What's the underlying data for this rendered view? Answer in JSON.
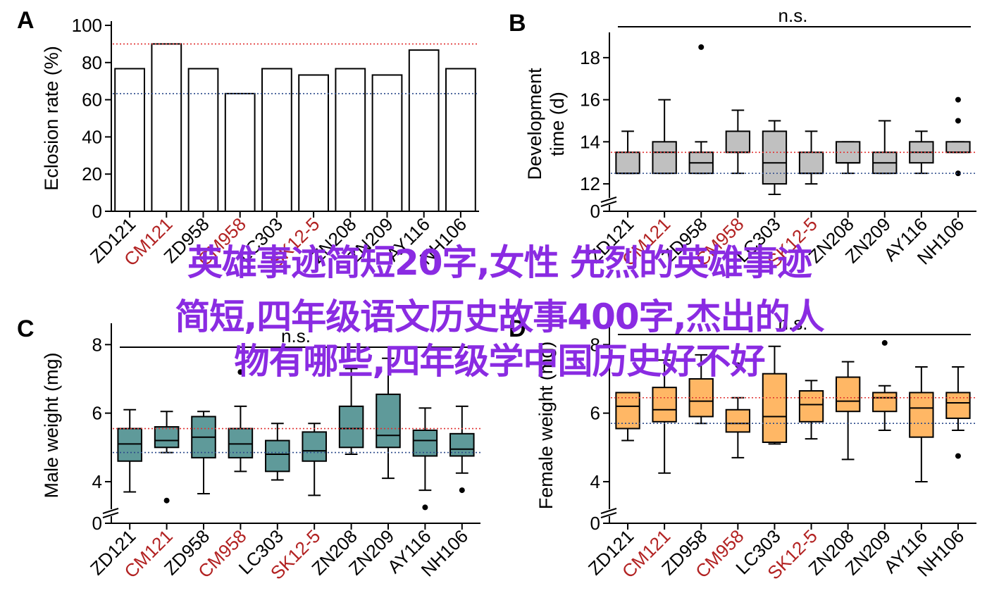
{
  "colors": {
    "ref_high": "#e03030",
    "ref_low": "#2c4a8a",
    "highlight_label": "#b22222",
    "male_box": "#5f9a9a",
    "female_box": "#ffb765",
    "devtime_box": "#c0c0c0",
    "banner": "#8a2be2"
  },
  "overlay": {
    "line1": "英雄事迹简短20字,女性 先烈的英雄事迹",
    "line2": "简短,四年级语文历史故事400字,杰出的人",
    "line3": "物有哪些,四年级学中国历史好不好"
  },
  "chart_data": [
    {
      "panel": "A",
      "type": "bar",
      "ylabel": "Eclosion rate (%)",
      "ylim": [
        0,
        100
      ],
      "yticks": [
        0,
        20,
        40,
        60,
        80,
        100
      ],
      "categories": [
        "ZD121",
        "CM121",
        "ZD958",
        "CM958",
        "LC303",
        "SK12-5",
        "ZN208",
        "ZN209",
        "AY116",
        "NH106"
      ],
      "highlighted_categories": [
        "CM121",
        "CM958",
        "SK12-5"
      ],
      "values": [
        76.7,
        90,
        76.7,
        63.3,
        76.7,
        73.3,
        76.7,
        73.3,
        86.7,
        76.7
      ],
      "reference_lines": [
        90,
        63.3
      ]
    },
    {
      "panel": "B",
      "type": "box",
      "ylabel": "Development time (d)",
      "ylim": [
        11.5,
        19
      ],
      "yticks": [
        12,
        14,
        16,
        18
      ],
      "axis_break": true,
      "significance": "n.s.",
      "categories": [
        "ZD121",
        "CM121",
        "ZD958",
        "CM958",
        "LC303",
        "SK12-5",
        "ZN208",
        "ZN209",
        "AY116",
        "NH106"
      ],
      "highlighted_categories": [
        "CM121",
        "CM958",
        "SK12-5"
      ],
      "boxes": [
        {
          "whislo": 12.5,
          "q1": 12.5,
          "med": 12.5,
          "q3": 13.5,
          "whishi": 14.5,
          "fliers": []
        },
        {
          "whislo": 12.5,
          "q1": 12.5,
          "med": 13.5,
          "q3": 14,
          "whishi": 16,
          "fliers": []
        },
        {
          "whislo": 12.5,
          "q1": 12.5,
          "med": 13,
          "q3": 13.5,
          "whishi": 14,
          "fliers": [
            18.5
          ]
        },
        {
          "whislo": 12.5,
          "q1": 13.5,
          "med": 13.5,
          "q3": 14.5,
          "whishi": 15.5,
          "fliers": []
        },
        {
          "whislo": 11.5,
          "q1": 12,
          "med": 13,
          "q3": 14.5,
          "whishi": 15,
          "fliers": []
        },
        {
          "whislo": 12,
          "q1": 12.5,
          "med": 12.5,
          "q3": 13.5,
          "whishi": 14.5,
          "fliers": []
        },
        {
          "whislo": 12.5,
          "q1": 13,
          "med": 13,
          "q3": 14,
          "whishi": 14,
          "fliers": []
        },
        {
          "whislo": 12.5,
          "q1": 12.5,
          "med": 13,
          "q3": 13.5,
          "whishi": 15,
          "fliers": []
        },
        {
          "whislo": 12.5,
          "q1": 13,
          "med": 13.5,
          "q3": 14,
          "whishi": 14.5,
          "fliers": []
        },
        {
          "whislo": 13.5,
          "q1": 13.5,
          "med": 13.5,
          "q3": 14,
          "whishi": 14,
          "fliers": [
            16,
            15,
            12.5
          ]
        }
      ],
      "reference_lines": [
        13.5,
        12.5
      ]
    },
    {
      "panel": "C",
      "type": "box",
      "ylabel": "Male weight (mg)",
      "ylim": [
        3.3,
        8.5
      ],
      "yticks": [
        4,
        6,
        8
      ],
      "axis_break": true,
      "significance": "n.s.",
      "categories": [
        "ZD121",
        "CM121",
        "ZD958",
        "CM958",
        "LC303",
        "SK12-5",
        "ZN208",
        "ZN209",
        "AY116",
        "NH106"
      ],
      "highlighted_categories": [
        "CM121",
        "CM958",
        "SK12-5"
      ],
      "boxes": [
        {
          "whislo": 3.7,
          "q1": 4.6,
          "med": 5.1,
          "q3": 5.55,
          "whishi": 6.1,
          "fliers": []
        },
        {
          "whislo": 4.85,
          "q1": 5.0,
          "med": 5.2,
          "q3": 5.6,
          "whishi": 6.05,
          "fliers": [
            3.45
          ]
        },
        {
          "whislo": 3.65,
          "q1": 4.7,
          "med": 5.3,
          "q3": 5.9,
          "whishi": 6.05,
          "fliers": []
        },
        {
          "whislo": 4.3,
          "q1": 4.7,
          "med": 5.1,
          "q3": 5.55,
          "whishi": 6.2,
          "fliers": [
            7.2
          ]
        },
        {
          "whislo": 4.05,
          "q1": 4.3,
          "med": 4.8,
          "q3": 5.2,
          "whishi": 5.7,
          "fliers": []
        },
        {
          "whislo": 3.6,
          "q1": 4.6,
          "med": 4.9,
          "q3": 5.45,
          "whishi": 5.7,
          "fliers": []
        },
        {
          "whislo": 4.8,
          "q1": 5.0,
          "med": 5.55,
          "q3": 6.2,
          "whishi": 7.3,
          "fliers": []
        },
        {
          "whislo": 4.1,
          "q1": 5.0,
          "med": 5.35,
          "q3": 6.55,
          "whishi": 7.6,
          "fliers": []
        },
        {
          "whislo": 3.75,
          "q1": 4.75,
          "med": 5.2,
          "q3": 5.5,
          "whishi": 6.15,
          "fliers": [
            3.25
          ]
        },
        {
          "whislo": 4.25,
          "q1": 4.75,
          "med": 4.95,
          "q3": 5.4,
          "whishi": 6.2,
          "fliers": [
            3.75
          ]
        }
      ],
      "reference_lines": [
        5.55,
        4.85
      ]
    },
    {
      "panel": "D",
      "type": "box",
      "ylabel": "Female weight (mg)",
      "ylim": [
        3.3,
        8.5
      ],
      "yticks": [
        4,
        6,
        8
      ],
      "axis_break": true,
      "significance": "n.s.",
      "categories": [
        "ZD121",
        "CM121",
        "ZD958",
        "CM958",
        "LC303",
        "SK12-5",
        "ZN208",
        "ZN209",
        "AY116",
        "NH106"
      ],
      "highlighted_categories": [
        "CM121",
        "CM958",
        "SK12-5"
      ],
      "boxes": [
        {
          "whislo": 5.2,
          "q1": 5.55,
          "med": 6.2,
          "q3": 6.6,
          "whishi": 6.6,
          "fliers": []
        },
        {
          "whislo": 4.25,
          "q1": 5.75,
          "med": 6.1,
          "q3": 6.75,
          "whishi": 7.55,
          "fliers": []
        },
        {
          "whislo": 5.7,
          "q1": 5.9,
          "med": 6.35,
          "q3": 7.0,
          "whishi": 7.7,
          "fliers": []
        },
        {
          "whislo": 4.7,
          "q1": 5.45,
          "med": 5.7,
          "q3": 6.1,
          "whishi": 6.45,
          "fliers": [
            7.4
          ]
        },
        {
          "whislo": 5.1,
          "q1": 5.15,
          "med": 5.9,
          "q3": 7.15,
          "whishi": 7.95,
          "fliers": []
        },
        {
          "whislo": 5.25,
          "q1": 5.75,
          "med": 6.25,
          "q3": 6.65,
          "whishi": 6.95,
          "fliers": []
        },
        {
          "whislo": 4.65,
          "q1": 6.05,
          "med": 6.35,
          "q3": 7.05,
          "whishi": 7.5,
          "fliers": []
        },
        {
          "whislo": 5.5,
          "q1": 6.05,
          "med": 6.45,
          "q3": 6.6,
          "whishi": 6.8,
          "fliers": [
            8.05
          ]
        },
        {
          "whislo": 4.0,
          "q1": 5.3,
          "med": 6.15,
          "q3": 6.6,
          "whishi": 7.35,
          "fliers": []
        },
        {
          "whislo": 5.5,
          "q1": 5.85,
          "med": 6.3,
          "q3": 6.6,
          "whishi": 7.35,
          "fliers": [
            4.75
          ]
        }
      ],
      "reference_lines": [
        6.45,
        5.7
      ]
    }
  ]
}
